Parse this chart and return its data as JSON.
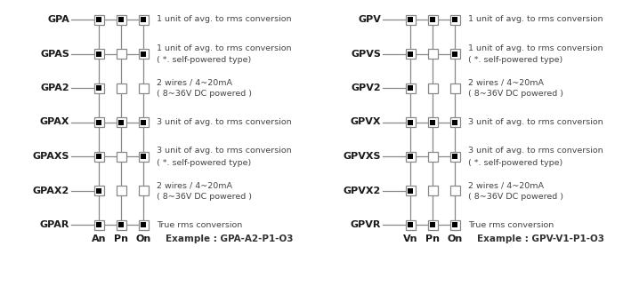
{
  "bg_color": "#ffffff",
  "text_color": "#1a1a1a",
  "box_outline": "#888888",
  "line_color": "#888888",
  "desc_color": "#444444",
  "example_color": "#333333",
  "left_panel": {
    "rows": [
      {
        "label": "GPA",
        "c0": true,
        "c1": true,
        "c2": true,
        "desc": [
          "1 unit of avg. to rms conversion"
        ]
      },
      {
        "label": "GPAS",
        "c0": true,
        "c1": false,
        "c2": true,
        "desc": [
          "1 unit of avg. to rms conversion",
          "( *. self-powered type)"
        ]
      },
      {
        "label": "GPA2",
        "c0": true,
        "c1": false,
        "c2": false,
        "desc": [
          "2 wires / 4~20mA",
          "( 8~36V DC powered )"
        ]
      },
      {
        "label": "GPAX",
        "c0": true,
        "c1": true,
        "c2": true,
        "desc": [
          "3 unit of avg. to rms conversion"
        ]
      },
      {
        "label": "GPAXS",
        "c0": true,
        "c1": false,
        "c2": true,
        "desc": [
          "3 unit of avg. to rms conversion",
          "( *. self-powered type)"
        ]
      },
      {
        "label": "GPAX2",
        "c0": true,
        "c1": false,
        "c2": false,
        "desc": [
          "2 wires / 4~20mA",
          "( 8~36V DC powered )"
        ]
      },
      {
        "label": "GPAR",
        "c0": true,
        "c1": true,
        "c2": true,
        "desc": [
          "True rms conversion"
        ]
      }
    ],
    "col_labels": [
      "An",
      "Pn",
      "On"
    ],
    "example": "Example : GPA-A2-P1-O3"
  },
  "right_panel": {
    "rows": [
      {
        "label": "GPV",
        "c0": true,
        "c1": true,
        "c2": true,
        "desc": [
          "1 unit of avg. to rms conversion"
        ]
      },
      {
        "label": "GPVS",
        "c0": true,
        "c1": false,
        "c2": true,
        "desc": [
          "1 unit of avg. to rms conversion",
          "( *. self-powered type)"
        ]
      },
      {
        "label": "GPV2",
        "c0": true,
        "c1": false,
        "c2": false,
        "desc": [
          "2 wires / 4~20mA",
          "( 8~36V DC powered )"
        ]
      },
      {
        "label": "GPVX",
        "c0": true,
        "c1": true,
        "c2": true,
        "desc": [
          "3 unit of avg. to rms conversion"
        ]
      },
      {
        "label": "GPVXS",
        "c0": true,
        "c1": false,
        "c2": true,
        "desc": [
          "3 unit of avg. to rms conversion",
          "( *. self-powered type)"
        ]
      },
      {
        "label": "GPVX2",
        "c0": true,
        "c1": false,
        "c2": false,
        "desc": [
          "2 wires / 4~20mA",
          "( 8~36V DC powered )"
        ]
      },
      {
        "label": "GPVR",
        "c0": true,
        "c1": true,
        "c2": true,
        "desc": [
          "True rms conversion"
        ]
      }
    ],
    "col_labels": [
      "Vn",
      "Pn",
      "On"
    ],
    "example": "Example : GPV-V1-P1-O3"
  }
}
